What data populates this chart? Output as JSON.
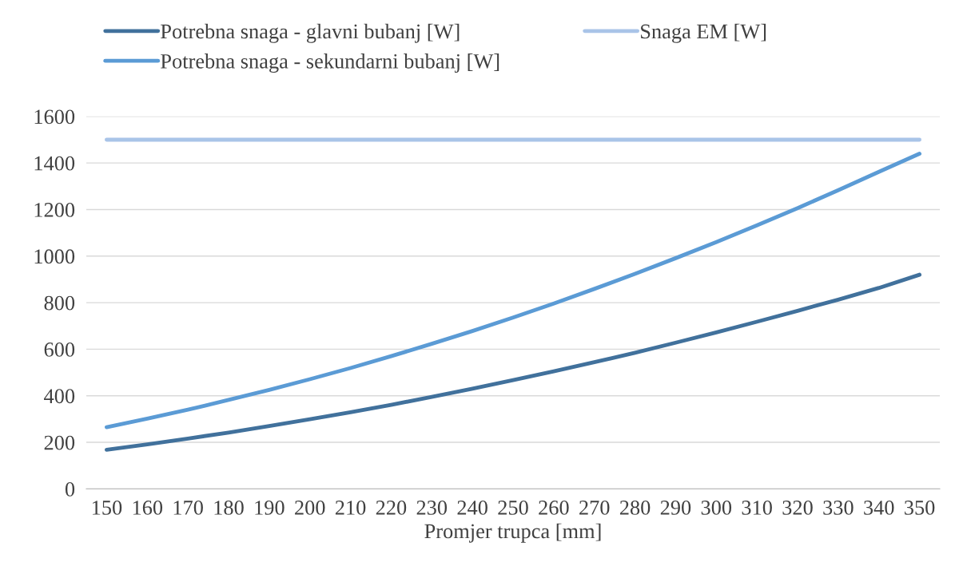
{
  "chart_data": {
    "type": "line",
    "xlabel": "Promjer trupca [mm]",
    "categories": [
      "150",
      "160",
      "170",
      "180",
      "190",
      "200",
      "210",
      "220",
      "230",
      "240",
      "250",
      "260",
      "270",
      "280",
      "290",
      "300",
      "310",
      "320",
      "330",
      "340",
      "350"
    ],
    "series": [
      {
        "name": "Potrebna snaga - glavni bubanj [W]",
        "color": "#41719c",
        "values": [
          168,
          191,
          216,
          242,
          270,
          299,
          329,
          361,
          395,
          430,
          467,
          505,
          544,
          585,
          628,
          672,
          718,
          765,
          813,
          863,
          920
        ]
      },
      {
        "name": "Potrebna snaga - sekundarni bubanj [W]",
        "color": "#5b9bd5",
        "values": [
          265,
          302,
          340,
          382,
          425,
          471,
          519,
          570,
          623,
          678,
          736,
          796,
          859,
          924,
          991,
          1060,
          1132,
          1206,
          1283,
          1362,
          1440
        ]
      },
      {
        "name": "Snaga EM [W]",
        "color": "#a9c4e8",
        "values": [
          1500,
          1500,
          1500,
          1500,
          1500,
          1500,
          1500,
          1500,
          1500,
          1500,
          1500,
          1500,
          1500,
          1500,
          1500,
          1500,
          1500,
          1500,
          1500,
          1500,
          1500
        ]
      }
    ],
    "ylim": [
      0,
      1600
    ],
    "yticks": [
      0,
      200,
      400,
      600,
      800,
      1000,
      1200,
      1400,
      1600
    ],
    "grid": "y",
    "legend": "top",
    "marker": "none",
    "line_style": "solid"
  }
}
